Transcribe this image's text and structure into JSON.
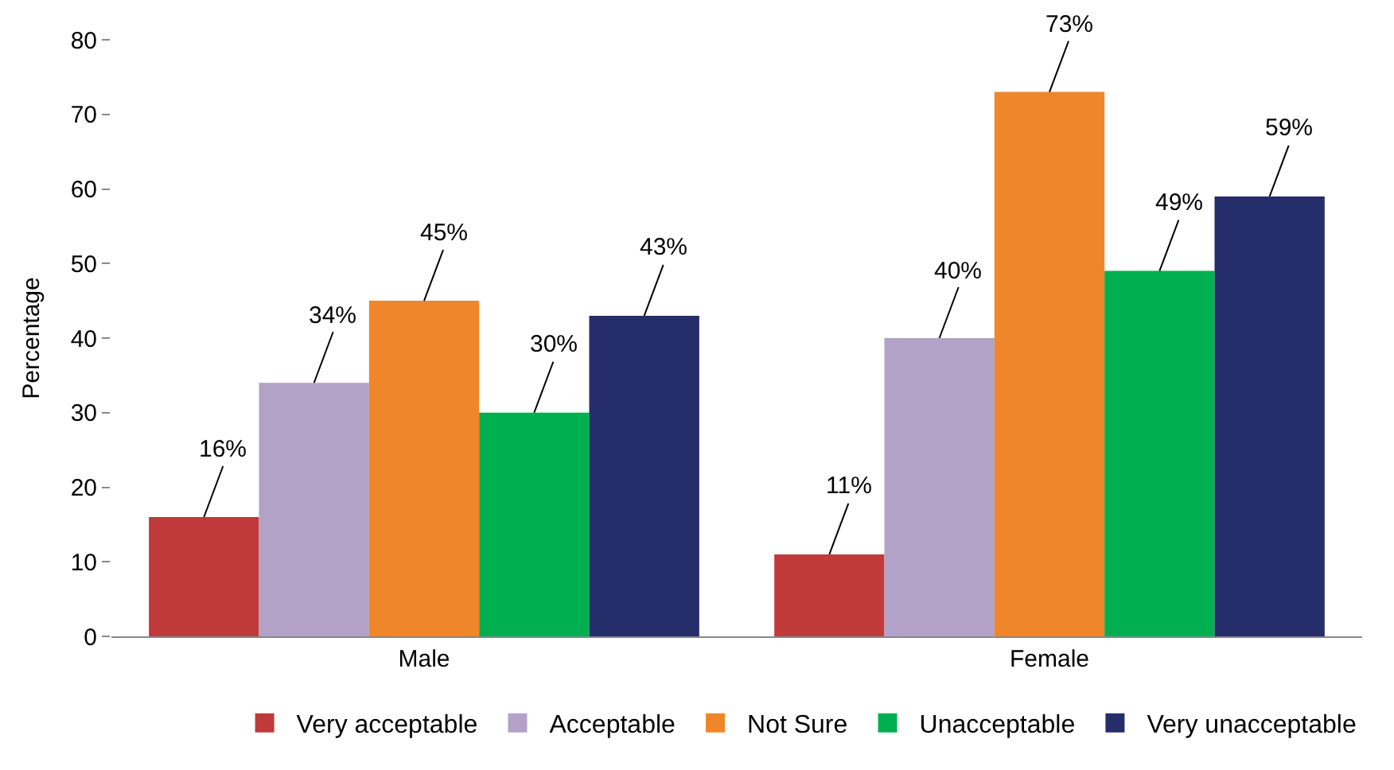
{
  "chart_data": {
    "type": "bar",
    "ylabel": "Percentage",
    "categories": [
      "Male",
      "Female"
    ],
    "series": [
      {
        "name": "Very acceptable",
        "color": "#c0393b",
        "values": [
          16,
          11
        ],
        "value_labels": [
          "16%",
          "11%"
        ]
      },
      {
        "name": "Acceptable",
        "color": "#b3a2c7",
        "values": [
          34,
          40
        ],
        "value_labels": [
          "34%",
          "40%"
        ]
      },
      {
        "name": "Not Sure",
        "color": "#f0862a",
        "values": [
          45,
          73
        ],
        "value_labels": [
          "45%",
          "73%"
        ]
      },
      {
        "name": "Unacceptable",
        "color": "#00b050",
        "values": [
          30,
          49
        ],
        "value_labels": [
          "30%",
          "49%"
        ]
      },
      {
        "name": "Very unacceptable",
        "color": "#262d6b",
        "values": [
          43,
          59
        ],
        "value_labels": [
          "43%",
          "59%"
        ]
      }
    ],
    "ylim": [
      0,
      80
    ],
    "yticks": [
      0,
      10,
      20,
      30,
      40,
      50,
      60,
      70,
      80
    ],
    "legend": "bottom"
  }
}
